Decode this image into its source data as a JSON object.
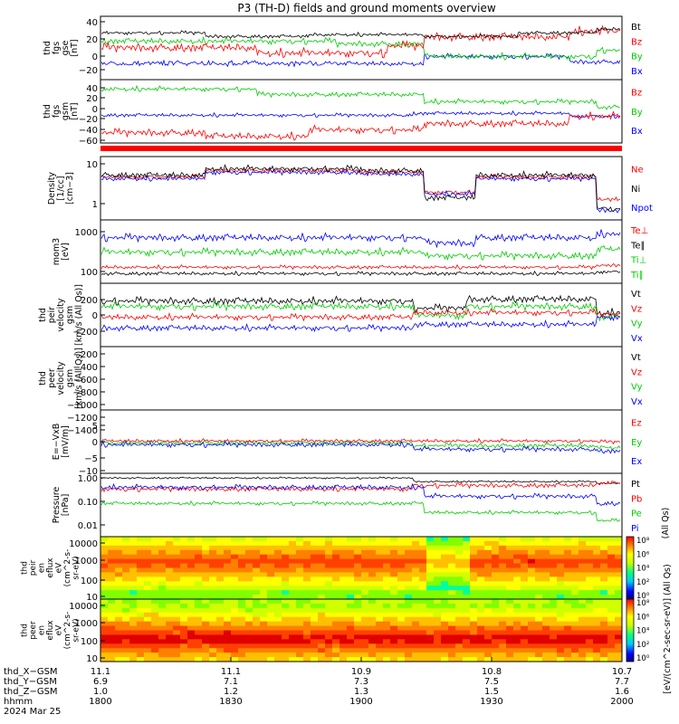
{
  "title": "P3 (TH-D) fields and ground moments overview",
  "colors": {
    "black": "#000000",
    "red": "#ff0000",
    "green": "#00cc00",
    "blue": "#0000ff"
  },
  "panels": [
    {
      "id": "fgs_gse",
      "ylabel": [
        "thd",
        "fgs",
        "gse",
        "[nT]"
      ],
      "yticks": [
        "40",
        "20",
        "0",
        "−20"
      ],
      "ylim": [
        -28,
        48
      ],
      "legend": [
        {
          "label": "Bt",
          "color": "black"
        },
        {
          "label": "Bz",
          "color": "red"
        },
        {
          "label": "By",
          "color": "green"
        },
        {
          "label": "Bx",
          "color": "blue"
        }
      ]
    },
    {
      "id": "fgs_gsm",
      "ylabel": [
        "thd",
        "fgs",
        "gsm",
        "[nT]"
      ],
      "yticks": [
        "40",
        "20",
        "0",
        "−20",
        "−40",
        "−60"
      ],
      "ylim": [
        -72,
        56
      ],
      "legend": [
        {
          "label": "Bz",
          "color": "red"
        },
        {
          "label": "By",
          "color": "green"
        },
        {
          "label": "Bx",
          "color": "blue"
        }
      ]
    },
    {
      "id": "density",
      "ylabel": [
        "Density",
        "[1/cc]",
        "[cm−3]"
      ],
      "yticks": [
        "10",
        "1"
      ],
      "ylim": [
        0.4,
        14
      ],
      "legend": [
        {
          "label": "Ne",
          "color": "red"
        },
        {
          "label": "Ni",
          "color": "black"
        },
        {
          "label": "Npot",
          "color": "blue"
        }
      ]
    },
    {
      "id": "temperature",
      "ylabel": [
        "mom3",
        "[eV]"
      ],
      "yticks": [
        "1000",
        "100"
      ],
      "ylim": [
        60,
        1800
      ],
      "legend": [
        {
          "label": "Te⊥",
          "color": "red"
        },
        {
          "label": "Te∥",
          "color": "black"
        },
        {
          "label": "Ti⊥",
          "color": "green"
        },
        {
          "label": "Ti∥",
          "color": "green"
        }
      ]
    },
    {
      "id": "peir_velocity",
      "ylabel": [
        "thd",
        "peir",
        "velocity",
        "gsm",
        "[km/s (All Qs)]"
      ],
      "yticks": [
        "200",
        "0",
        "−200"
      ],
      "ylim": [
        -320,
        360
      ],
      "legend": [
        {
          "label": "Vt",
          "color": "black"
        },
        {
          "label": "Vz",
          "color": "red"
        },
        {
          "label": "Vy",
          "color": "green"
        },
        {
          "label": "Vx",
          "color": "blue"
        }
      ]
    },
    {
      "id": "peer_velocity",
      "ylabel": [
        "thd",
        "peer",
        "velocity",
        "gsm",
        "[km/s (All Qs)]"
      ],
      "yticks": [
        "−200",
        "−400",
        "−600",
        "−800",
        "−1000",
        "−1200",
        "−1400"
      ],
      "ylim": [
        -1500,
        -100
      ],
      "legend": [
        {
          "label": "Vt",
          "color": "black"
        },
        {
          "label": "Vz",
          "color": "red"
        },
        {
          "label": "Vy",
          "color": "green"
        },
        {
          "label": "Vx",
          "color": "blue"
        }
      ]
    },
    {
      "id": "efield",
      "ylabel": [
        "E=−VxB",
        "[mV/m]"
      ],
      "yticks": [
        "5",
        "0",
        "−5",
        "−10"
      ],
      "ylim": [
        -10.5,
        8.5
      ],
      "legend": [
        {
          "label": "Ez",
          "color": "red"
        },
        {
          "label": "Ey",
          "color": "green"
        },
        {
          "label": "Ex",
          "color": "blue"
        }
      ]
    },
    {
      "id": "pressure",
      "ylabel": [
        "Pressure",
        "[nPa]"
      ],
      "yticks": [
        "1.00",
        "0.10",
        "0.01"
      ],
      "ylim": [
        0.004,
        1.6
      ],
      "legend": [
        {
          "label": "Pt",
          "color": "black"
        },
        {
          "label": "Pb",
          "color": "red"
        },
        {
          "label": "Pe",
          "color": "green"
        },
        {
          "label": "Pi",
          "color": "blue"
        }
      ],
      "side_label": "(All Qs)"
    }
  ],
  "spectrograms": [
    {
      "id": "peir_eflux",
      "ylabel": [
        "thd",
        "peir",
        "en",
        "eflux",
        "eV",
        "(cm^2-s-",
        "sr-eV)"
      ],
      "yticks": [
        "10000",
        "1000",
        "100",
        "10"
      ]
    },
    {
      "id": "peer_eflux",
      "ylabel": [
        "thd",
        "peer",
        "en",
        "eflux",
        "eV",
        "(cm^2-s-",
        "sr-eV)"
      ],
      "yticks": [
        "10000",
        "1000",
        "100",
        "10"
      ]
    }
  ],
  "colorbar": {
    "ticks": [
      "10⁸",
      "10⁶",
      "10⁴",
      "10²",
      "10⁰"
    ],
    "label": "[eV/(cm^2-sec-sr-eV)] (All Qs)"
  },
  "bottom_axis": {
    "row_labels": [
      "thd_X−GSM",
      "thd_Y−GSM",
      "thd_Z−GSM",
      "hhmm",
      "2024 Mar 25"
    ],
    "columns": [
      {
        "x": "11.1",
        "y": "6.9",
        "z": "1.0",
        "hhmm": "1800"
      },
      {
        "x": "11.1",
        "y": "7.1",
        "z": "1.2",
        "hhmm": "1830"
      },
      {
        "x": "10.9",
        "y": "7.3",
        "z": "1.3",
        "hhmm": "1900"
      },
      {
        "x": "10.8",
        "y": "7.5",
        "z": "1.5",
        "hhmm": "1930"
      },
      {
        "x": "10.7",
        "y": "7.7",
        "z": "1.6",
        "hhmm": "2000"
      }
    ]
  },
  "chart_data": {
    "type": "line",
    "title": "P3 (TH-D) fields and ground moments overview",
    "xlabel": "hhmm",
    "xlim": [
      "1800",
      "2000"
    ],
    "x_tick_labels": [
      "1800",
      "1830",
      "1900",
      "1930",
      "2000"
    ],
    "panels": [
      {
        "panel": "thd fgs gse [nT]",
        "x_hhmm": [
          "1800",
          "1830",
          "1900",
          "1930",
          "2000"
        ],
        "series": [
          {
            "name": "Bt",
            "values": [
              30,
              30,
              28,
              26,
              30
            ]
          },
          {
            "name": "Bz",
            "values": [
              10,
              5,
              5,
              20,
              25
            ]
          },
          {
            "name": "By",
            "values": [
              20,
              20,
              15,
              0,
              0
            ]
          },
          {
            "name": "Bx",
            "values": [
              -10,
              -10,
              -5,
              -10,
              -15
            ]
          }
        ]
      },
      {
        "panel": "thd fgs gsm [nT]",
        "x_hhmm": [
          "1800",
          "1830",
          "1900",
          "1930",
          "2000"
        ],
        "series": [
          {
            "name": "Bz",
            "values": [
              -30,
              -40,
              -35,
              -20,
              -5
            ]
          },
          {
            "name": "By",
            "values": [
              40,
              30,
              30,
              15,
              0
            ]
          },
          {
            "name": "Bx",
            "values": [
              -15,
              -15,
              -10,
              -15,
              -20
            ]
          }
        ]
      },
      {
        "panel": "Density [1/cc]",
        "x_hhmm": [
          "1800",
          "1830",
          "1900",
          "1930",
          "2000"
        ],
        "series": [
          {
            "name": "Ne",
            "values": [
              6,
              7,
              6,
              4,
              1.2
            ]
          },
          {
            "name": "Ni",
            "values": [
              6,
              7,
              6,
              4,
              1.0
            ]
          },
          {
            "name": "Npot",
            "values": [
              5,
              6,
              5,
              3.5,
              1.5
            ]
          }
        ]
      },
      {
        "panel": "mom3 [eV]",
        "x_hhmm": [
          "1800",
          "1830",
          "1900",
          "1930",
          "2000"
        ],
        "series": [
          {
            "name": "Te⊥",
            "values": [
              140,
              130,
              120,
              150,
              130
            ]
          },
          {
            "name": "Te∥",
            "values": [
              100,
              100,
              100,
              110,
              100
            ]
          },
          {
            "name": "Ti⊥",
            "values": [
              900,
              850,
              800,
              700,
              1000
            ]
          },
          {
            "name": "Ti∥",
            "values": [
              400,
              350,
              350,
              300,
              500
            ]
          }
        ]
      },
      {
        "panel": "thd peir velocity gsm [km/s (All Qs)]",
        "x_hhmm": [
          "1800",
          "1830",
          "1900",
          "1930",
          "2000"
        ],
        "series": [
          {
            "name": "Vt",
            "values": [
              200,
              200,
              150,
              150,
              80
            ]
          },
          {
            "name": "Vz",
            "values": [
              50,
              50,
              20,
              30,
              50
            ]
          },
          {
            "name": "Vy",
            "values": [
              120,
              150,
              80,
              50,
              0
            ]
          },
          {
            "name": "Vx",
            "values": [
              -100,
              -120,
              -80,
              -80,
              -50
            ]
          }
        ]
      },
      {
        "panel": "E=−VxB [mV/m]",
        "x_hhmm": [
          "1800",
          "1830",
          "1900",
          "1930",
          "2000"
        ],
        "series": [
          {
            "name": "Ez",
            "values": [
              1,
              1,
              0.5,
              1,
              0
            ]
          },
          {
            "name": "Ey",
            "values": [
              0.5,
              0,
              0,
              -1,
              -1
            ]
          },
          {
            "name": "Ex",
            "values": [
              0,
              0,
              -0.5,
              -1.5,
              -2
            ]
          }
        ]
      },
      {
        "panel": "Pressure [nPa]",
        "x_hhmm": [
          "1800",
          "1830",
          "1900",
          "1930",
          "2000"
        ],
        "series": [
          {
            "name": "Pt",
            "values": [
              0.8,
              0.8,
              0.7,
              0.55,
              0.5
            ]
          },
          {
            "name": "Pb",
            "values": [
              0.3,
              0.3,
              0.3,
              0.35,
              0.4
            ]
          },
          {
            "name": "Pe",
            "values": [
              0.05,
              0.05,
              0.05,
              0.03,
              0.025
            ]
          },
          {
            "name": "Pi",
            "values": [
              0.4,
              0.4,
              0.35,
              0.2,
              0.1
            ]
          }
        ]
      }
    ]
  }
}
